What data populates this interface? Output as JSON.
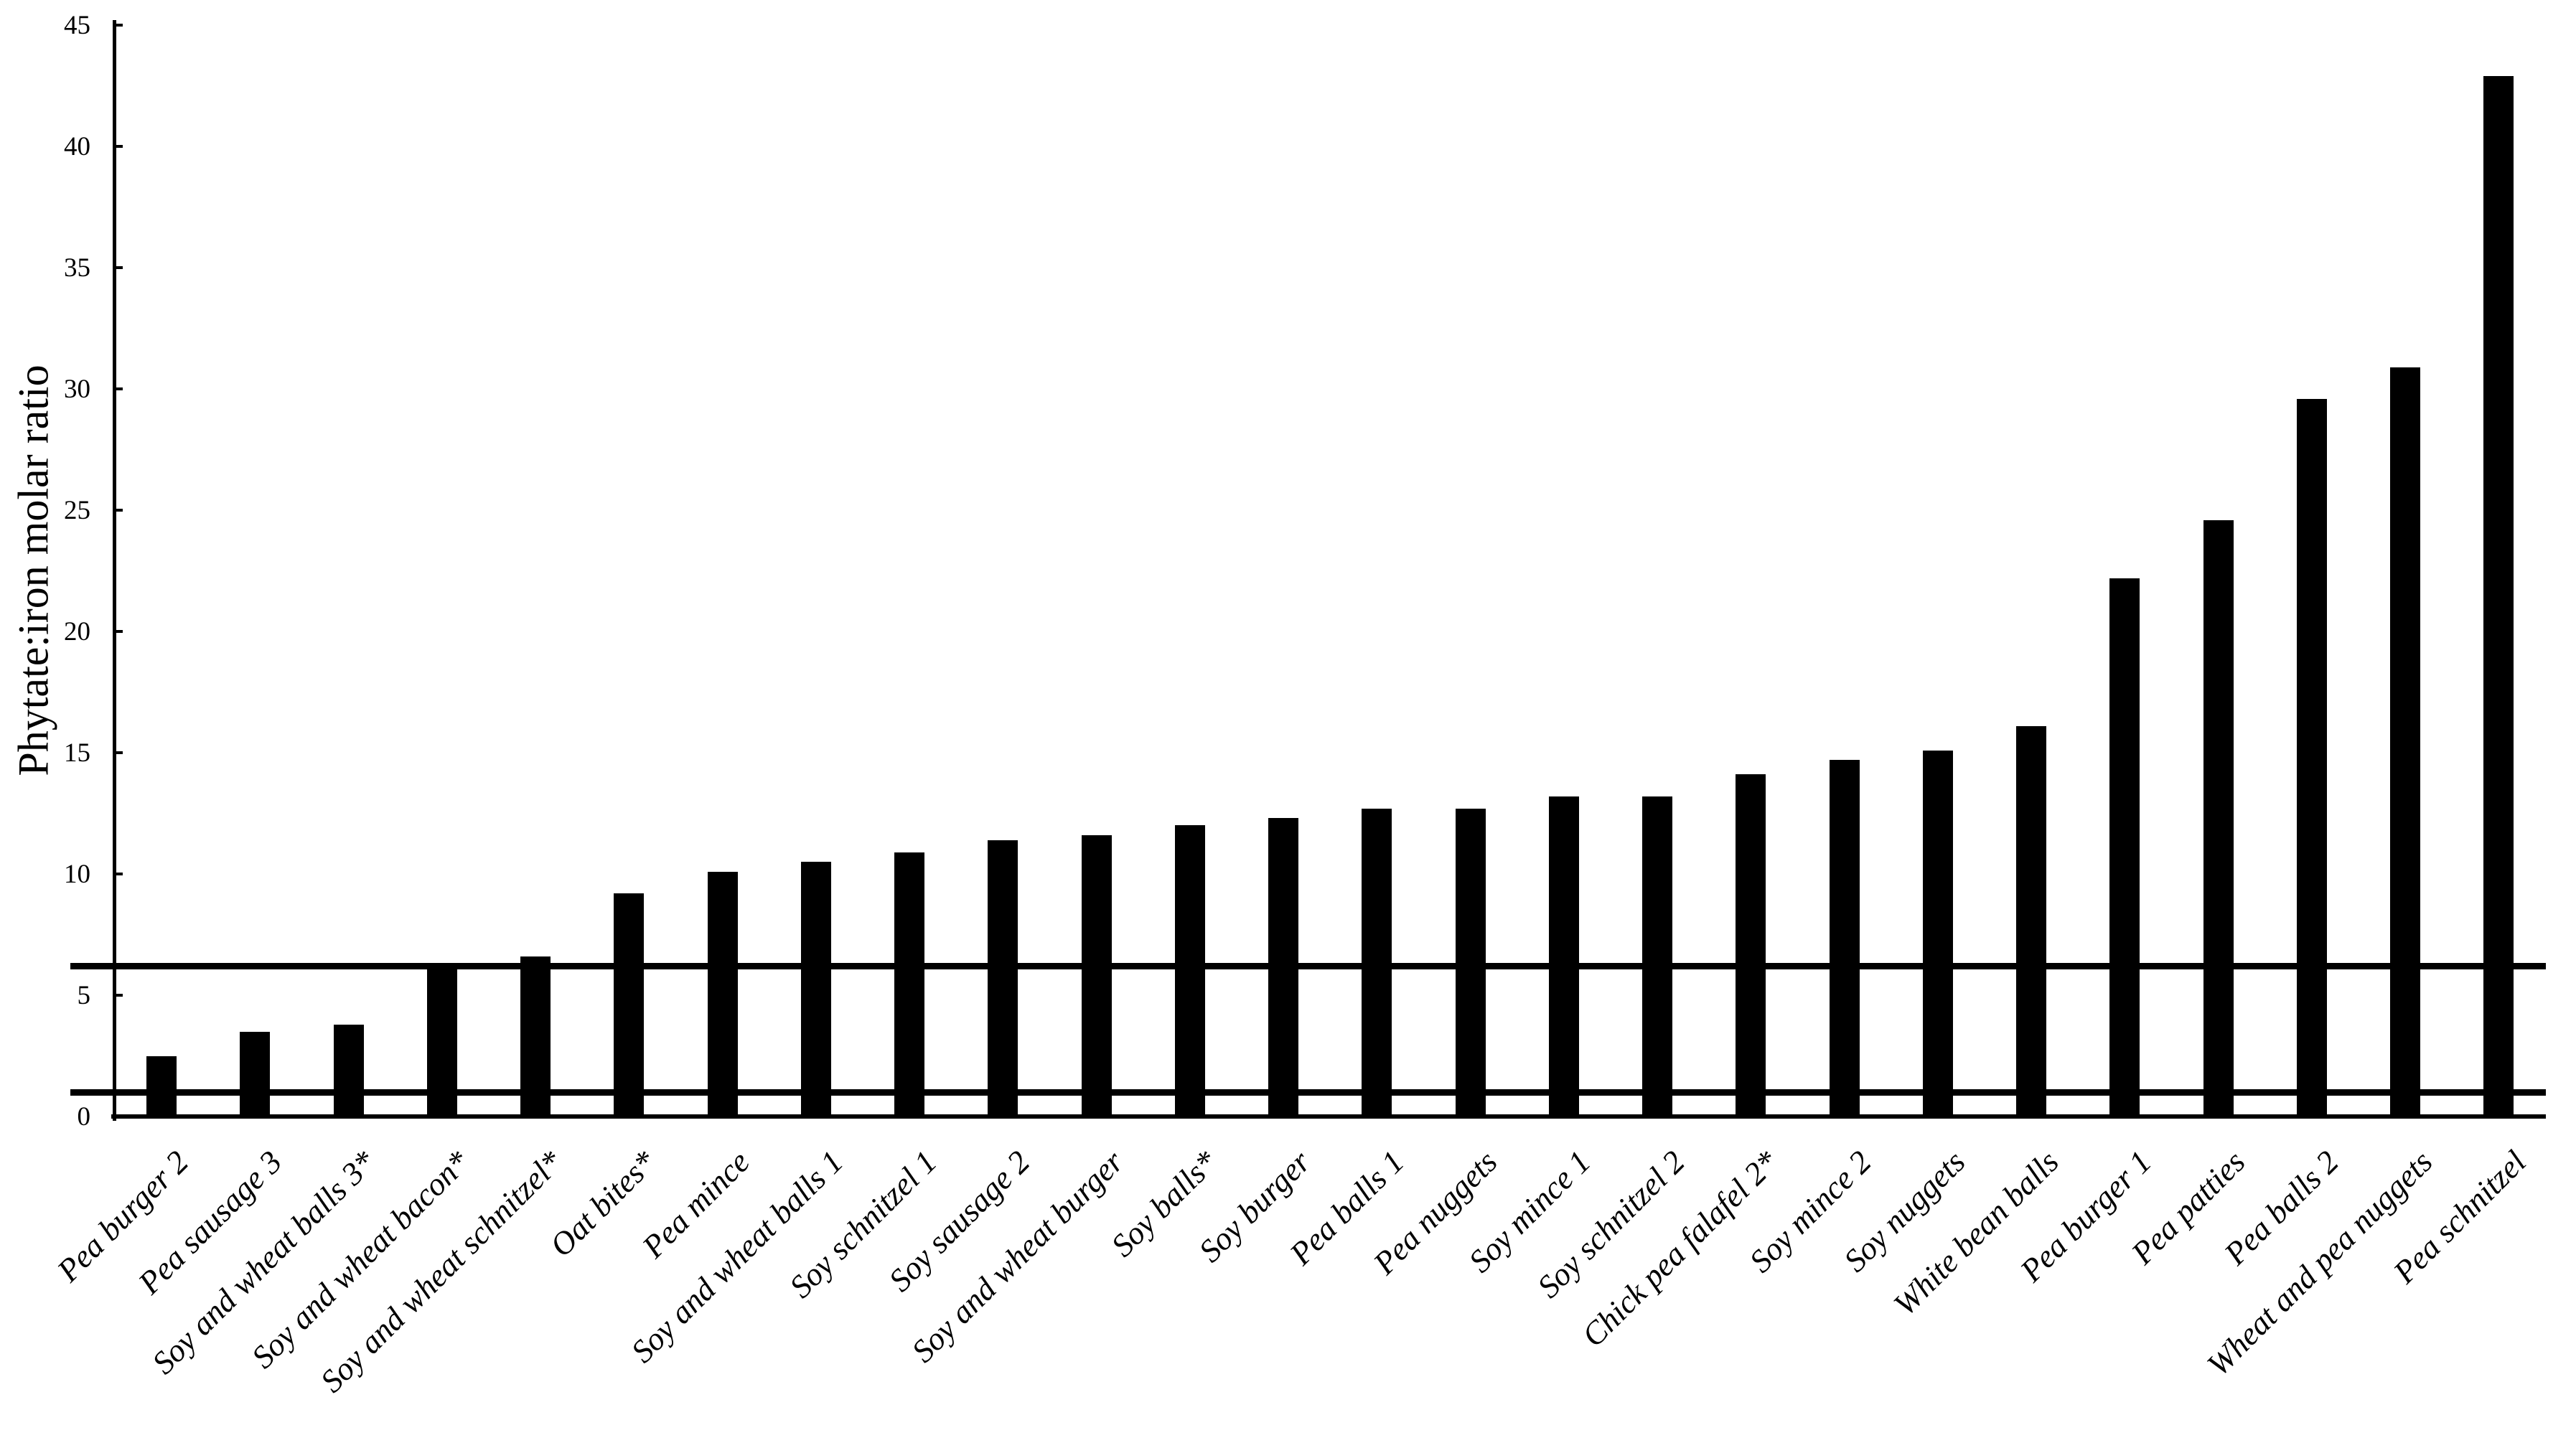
{
  "chart_data": {
    "type": "bar",
    "title": "",
    "xlabel": "",
    "ylabel": "Phytate:iron molar ratio",
    "ylim": [
      0,
      45
    ],
    "yticks": [
      0,
      5,
      10,
      15,
      20,
      25,
      30,
      35,
      40,
      45
    ],
    "grid": false,
    "legend": "none",
    "bar_color": "#000000",
    "background_color": "#ffffff",
    "categories": [
      "Pea burger 2",
      "Pea sausage 3",
      "Soy and wheat balls 3*",
      "Soy and wheat bacon*",
      "Soy and wheat schnitzel*",
      "Oat bites*",
      "Pea mince",
      "Soy and wheat balls 1",
      "Soy schnitzel 1",
      "Soy sausage 2",
      "Soy and wheat burger",
      "Soy balls*",
      "Soy burger",
      "Pea balls 1",
      "Pea nuggets",
      "Soy mince 1",
      "Soy schnitzel 2",
      "Chick pea falafel 2*",
      "Soy mince 2",
      "Soy nuggets",
      "White bean balls",
      "Pea burger 1",
      "Pea patties",
      "Pea balls 2",
      "Wheat and pea nuggets",
      "Pea schnitzel"
    ],
    "values": [
      2.5,
      3.5,
      3.8,
      6.2,
      6.6,
      9.2,
      10.1,
      10.5,
      10.9,
      11.4,
      11.6,
      12.0,
      12.3,
      12.7,
      12.7,
      13.2,
      13.2,
      14.1,
      14.7,
      15.1,
      16.1,
      22.2,
      24.6,
      29.6,
      30.9,
      42.9
    ],
    "reference_lines": [
      {
        "name": "upper-threshold-line",
        "value": 6.2
      },
      {
        "name": "lower-threshold-line",
        "value": 1.0
      }
    ]
  }
}
